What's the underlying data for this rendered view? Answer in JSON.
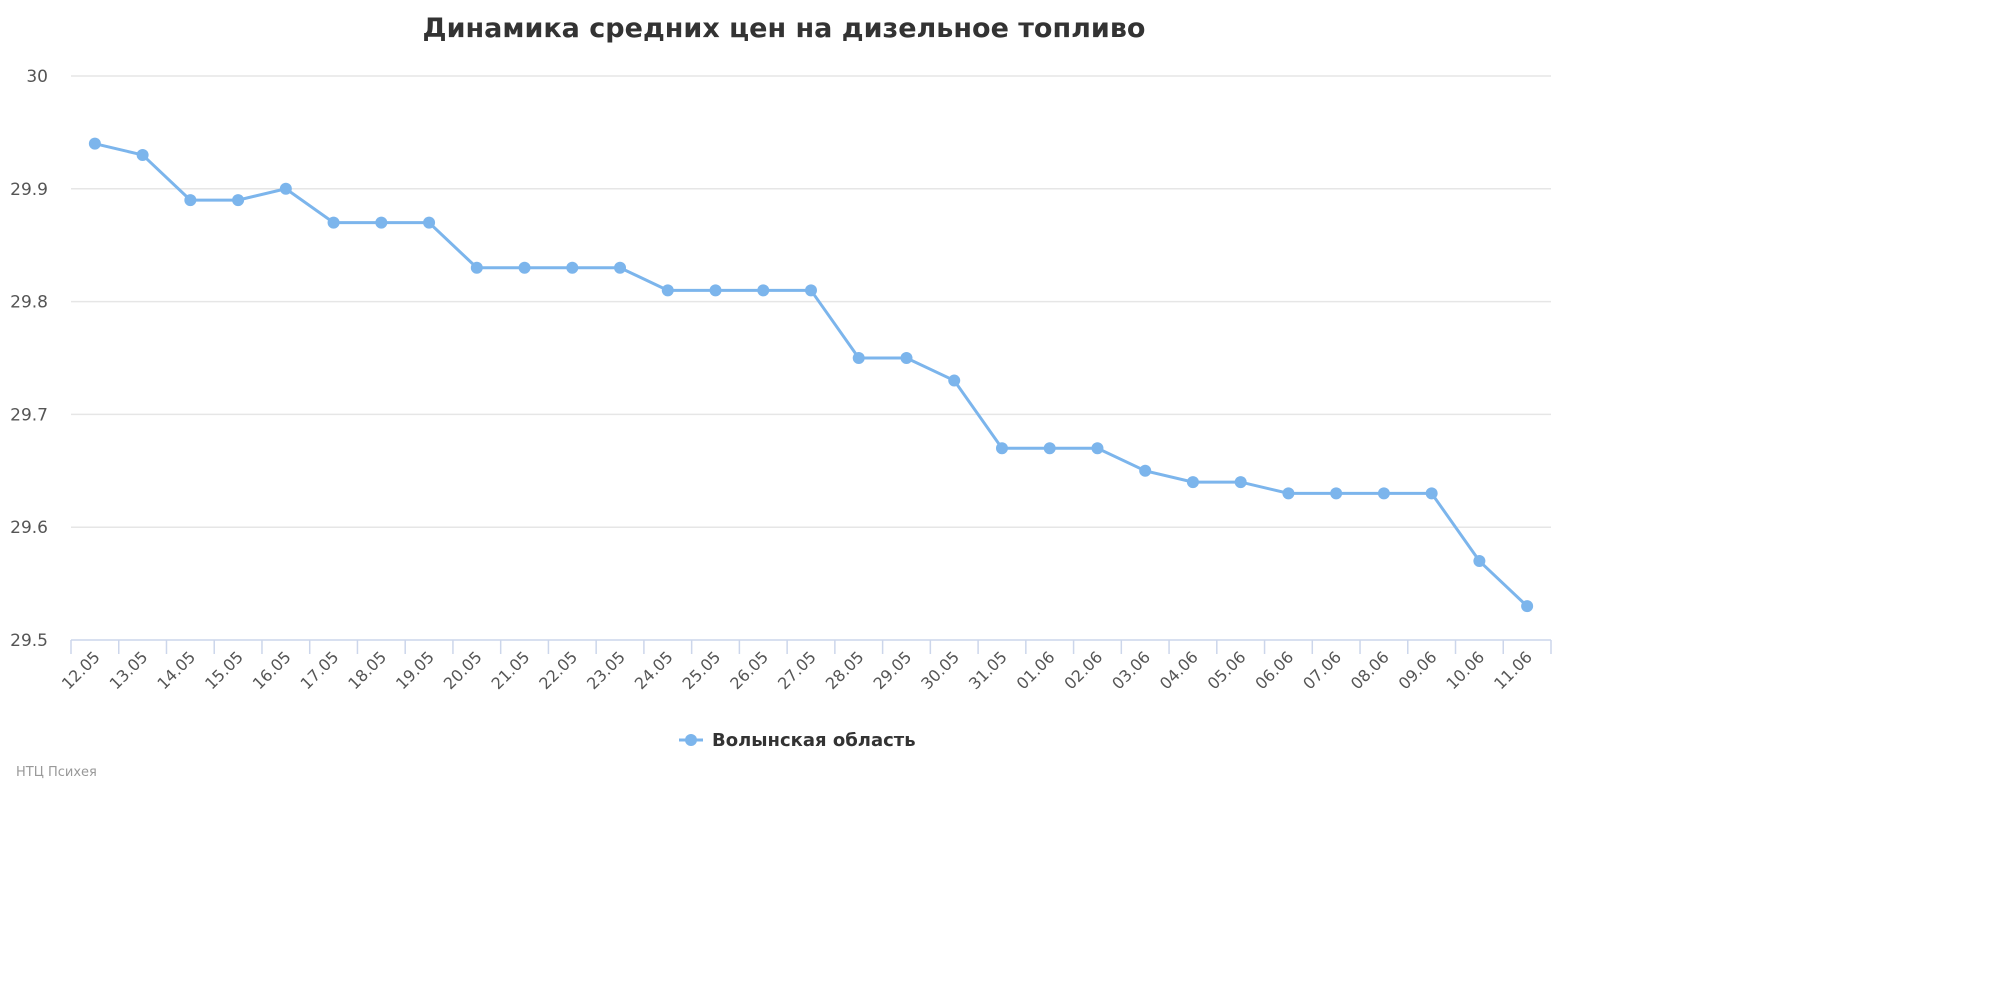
{
  "chart_data": {
    "type": "line",
    "title": "Динамика средних цен на дизельное топливо",
    "xlabel": "",
    "ylabel": "",
    "categories": [
      "12.05",
      "13.05",
      "14.05",
      "15.05",
      "16.05",
      "17.05",
      "18.05",
      "19.05",
      "20.05",
      "21.05",
      "22.05",
      "23.05",
      "24.05",
      "25.05",
      "26.05",
      "27.05",
      "28.05",
      "29.05",
      "30.05",
      "31.05",
      "01.06",
      "02.06",
      "03.06",
      "04.06",
      "05.06",
      "06.06",
      "07.06",
      "08.06",
      "09.06",
      "10.06",
      "11.06"
    ],
    "series": [
      {
        "name": "Волынская область",
        "color": "#7cb5ec",
        "values": [
          29.94,
          29.93,
          29.89,
          29.89,
          29.9,
          29.87,
          29.87,
          29.87,
          29.83,
          29.83,
          29.83,
          29.83,
          29.81,
          29.81,
          29.81,
          29.81,
          29.75,
          29.75,
          29.73,
          29.67,
          29.67,
          29.67,
          29.65,
          29.64,
          29.64,
          29.63,
          29.63,
          29.63,
          29.63,
          29.57,
          29.53
        ]
      }
    ],
    "ylim": [
      29.5,
      30
    ],
    "yticks": [
      "29.5",
      "29.6",
      "29.7",
      "29.8",
      "29.9",
      "30"
    ],
    "grid": true,
    "legend": "bottom-center"
  },
  "credit": "НТЦ Психея",
  "colors": {
    "grid": "#e6e6e6",
    "axis": "#ccd6eb",
    "series": "#7cb5ec"
  }
}
